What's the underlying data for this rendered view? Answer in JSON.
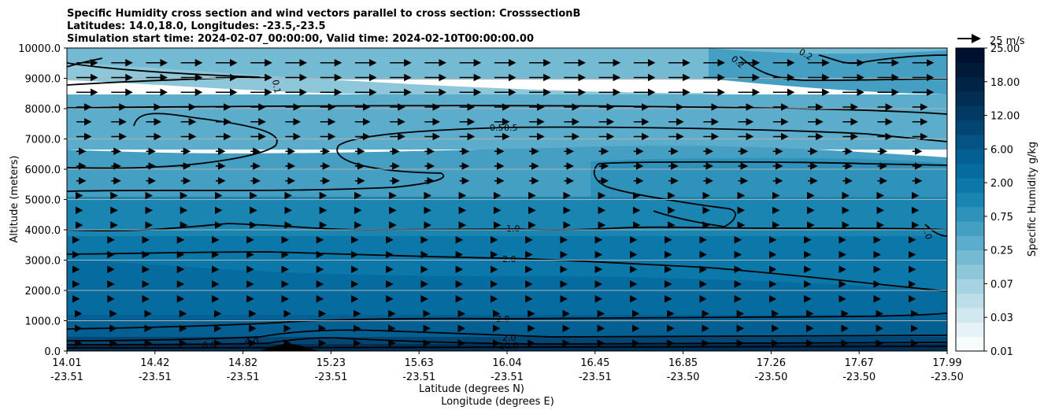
{
  "chart_data": {
    "type": "filled-contour",
    "title_lines": [
      "Specific Humidity cross section and wind vectors parallel to cross section: CrosssectionB",
      "Latitudes: 14.0,18.0, Longitudes: -23.5,-23.5",
      "Simulation start time: 2024-02-07_00:00:00, Valid time: 2024-02-10T00:00:00.00"
    ],
    "xlabel_lat": "Latitude (degrees N)",
    "xlabel_lon": "Longitude (degrees E)",
    "ylabel": "Altitude (meters)",
    "x_ticks": [
      {
        "lat": "14.01",
        "lon": "-23.51"
      },
      {
        "lat": "14.42",
        "lon": "-23.51"
      },
      {
        "lat": "14.82",
        "lon": "-23.51"
      },
      {
        "lat": "15.23",
        "lon": "-23.51"
      },
      {
        "lat": "15.63",
        "lon": "-23.51"
      },
      {
        "lat": "16.04",
        "lon": "-23.51"
      },
      {
        "lat": "16.45",
        "lon": "-23.51"
      },
      {
        "lat": "16.85",
        "lon": "-23.50"
      },
      {
        "lat": "17.26",
        "lon": "-23.50"
      },
      {
        "lat": "17.67",
        "lon": "-23.50"
      },
      {
        "lat": "17.99",
        "lon": "-23.50"
      }
    ],
    "y_ticks": [
      "0.0",
      "1000.0",
      "2000.0",
      "3000.0",
      "4000.0",
      "5000.0",
      "6000.0",
      "7000.0",
      "8000.0",
      "9000.0",
      "10000.0"
    ],
    "ylim": [
      0,
      10000
    ],
    "grid": "horizontal",
    "colorbar": {
      "label": "Specific Humidity g/kg",
      "levels": [
        "0.01",
        "0.03",
        "0.07",
        "0.25",
        "0.75",
        "2.00",
        "6.00",
        "12.00",
        "18.00",
        "25.00"
      ],
      "colors": [
        "#f7fbfc",
        "#e6f2f6",
        "#d2e8ef",
        "#bcdee8",
        "#a6d3e1",
        "#8ec7da",
        "#74bad2",
        "#5badcb",
        "#449fc3",
        "#2f92bb",
        "#1b85b2",
        "#0c78a9",
        "#066c9f",
        "#045f93",
        "#045384",
        "#034673",
        "#023a63",
        "#022e54",
        "#012345",
        "#001a38",
        "#001030"
      ]
    },
    "wind_key": {
      "label": "25 m/s"
    },
    "contour_labels": [
      "0.1",
      "0.2",
      "0.2",
      "0.5",
      "0.5",
      "1.0",
      "1.0",
      "2.0",
      "2.0",
      "2.0",
      "4.0",
      "8.0",
      "10.0"
    ]
  }
}
